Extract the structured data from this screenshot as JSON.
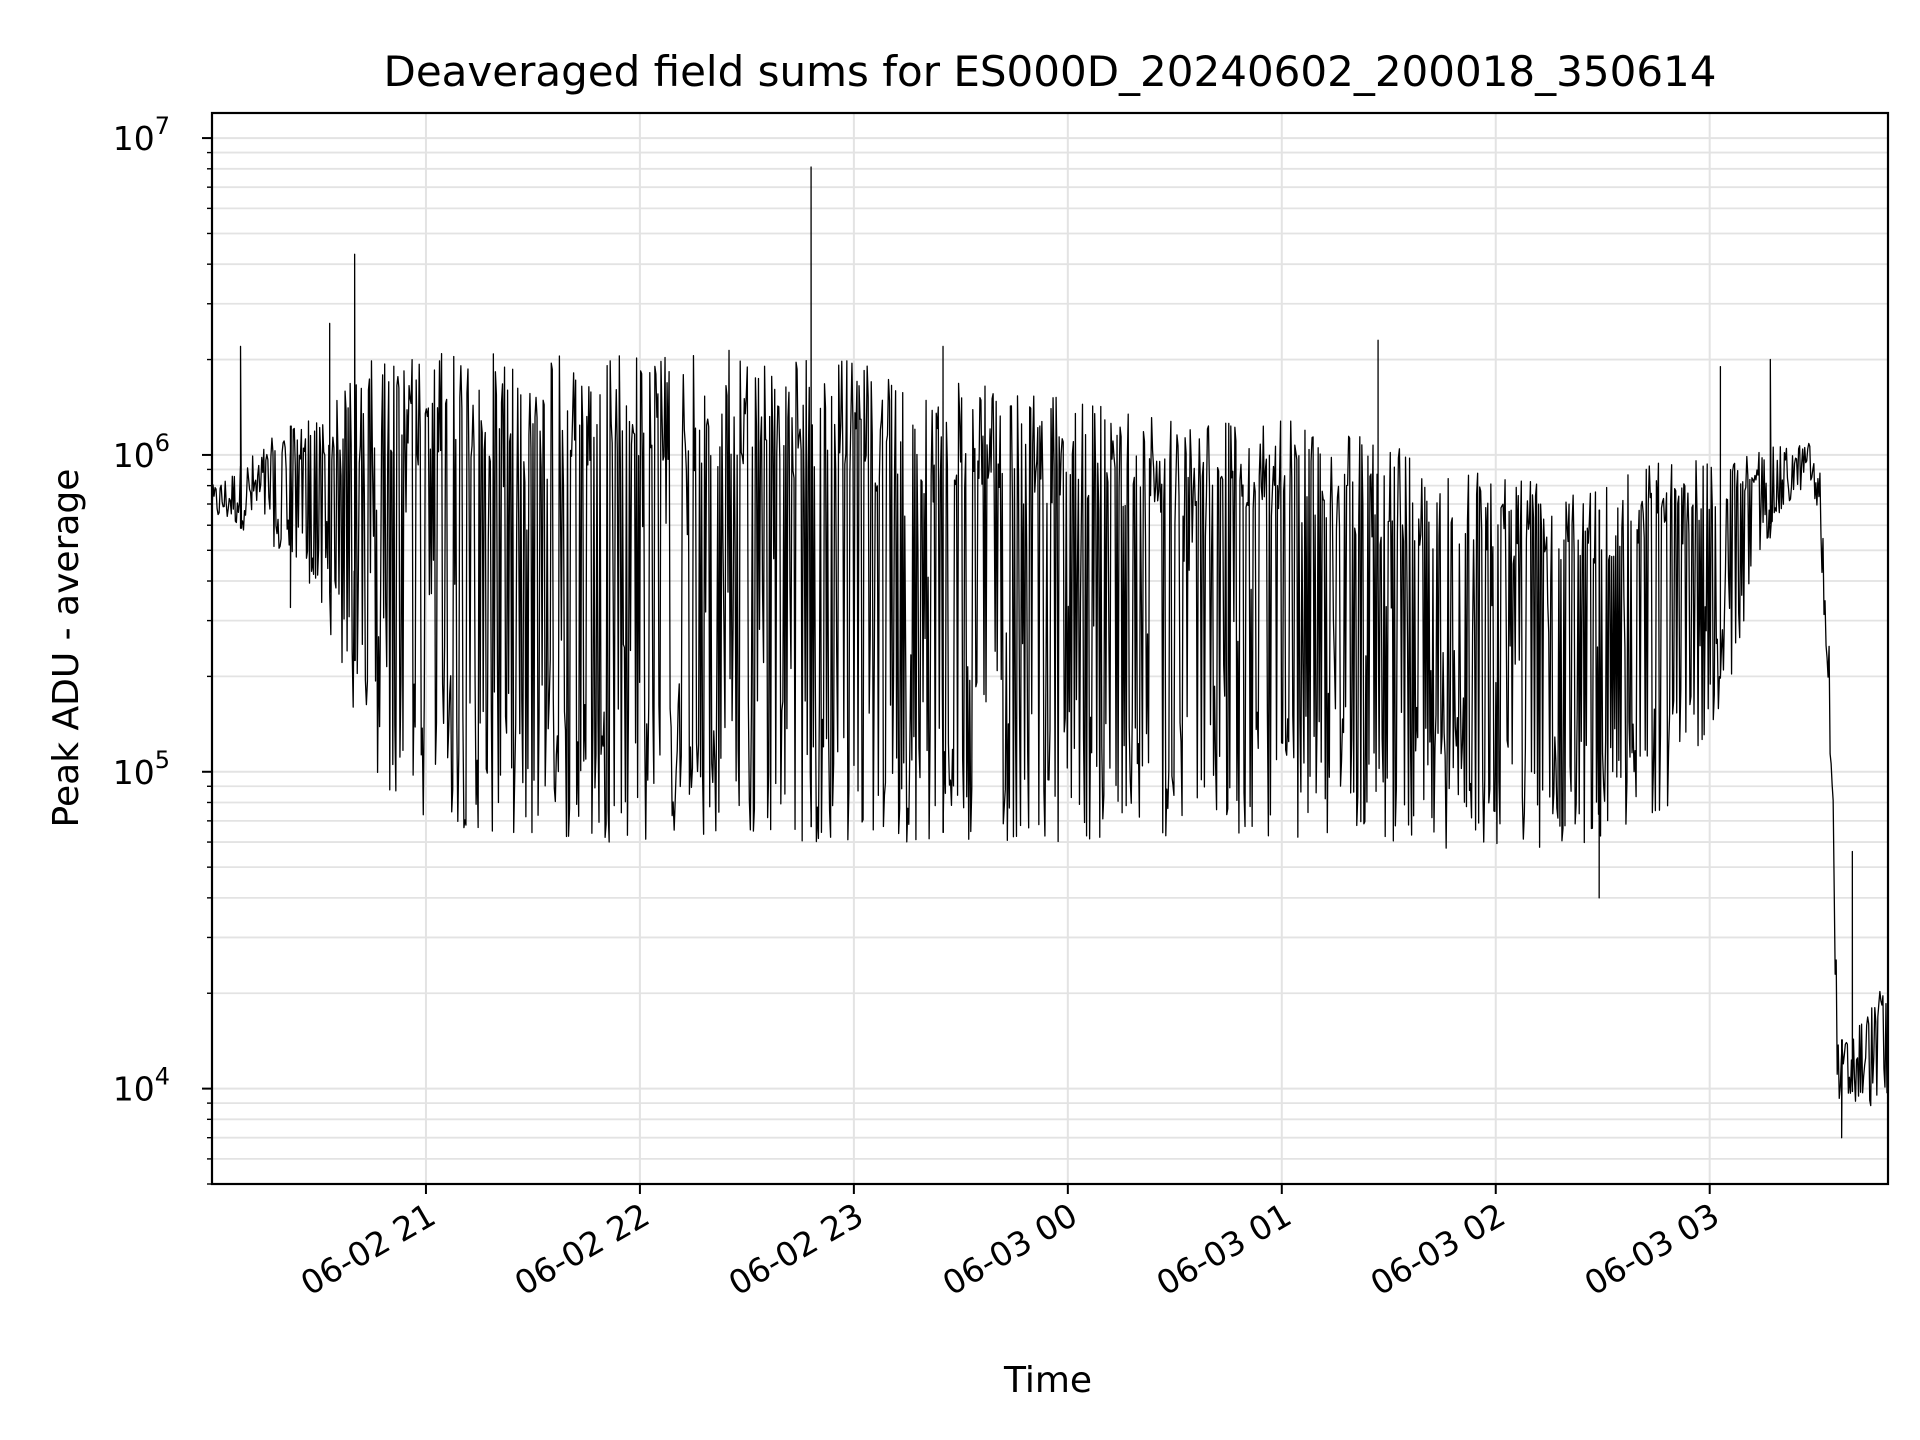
{
  "chart_data": {
    "type": "line",
    "title": "Deaveraged field sums for ES000D_20240602_200018_350614",
    "xlabel": "Time",
    "ylabel": "Peak ADU - average",
    "yscale": "log",
    "ylim": [
      5000,
      12000000
    ],
    "xlim": [
      "2024-06-02 20:00",
      "2024-06-03 03:50"
    ],
    "grid": true,
    "x_ticks": [
      "06-02 21",
      "06-02 22",
      "06-02 23",
      "06-03 00",
      "06-03 01",
      "06-03 02",
      "06-03 03"
    ],
    "y_ticks": [
      {
        "base": "10",
        "exp": "4",
        "value": 10000
      },
      {
        "base": "10",
        "exp": "5",
        "value": 100000
      },
      {
        "base": "10",
        "exp": "6",
        "value": 1000000
      },
      {
        "base": "10",
        "exp": "7",
        "value": 10000000
      }
    ],
    "series": [
      {
        "color": "#000000",
        "envelope": [
          {
            "time": "2024-06-02 20:00",
            "low": 620000,
            "high": 800000
          },
          {
            "time": "2024-06-02 20:15",
            "low": 550000,
            "high": 1100000
          },
          {
            "time": "2024-06-02 20:30",
            "low": 350000,
            "high": 1400000
          },
          {
            "time": "2024-06-02 20:45",
            "low": 90000,
            "high": 2000000
          },
          {
            "time": "2024-06-02 21:00",
            "low": 70000,
            "high": 2100000
          },
          {
            "time": "2024-06-02 21:30",
            "low": 60000,
            "high": 2100000
          },
          {
            "time": "2024-06-02 22:00",
            "low": 60000,
            "high": 2100000
          },
          {
            "time": "2024-06-02 22:30",
            "low": 60000,
            "high": 2150000
          },
          {
            "time": "2024-06-02 23:00",
            "low": 60000,
            "high": 2000000
          },
          {
            "time": "2024-06-02 23:30",
            "low": 60000,
            "high": 1700000
          },
          {
            "time": "2024-06-03 00:00",
            "low": 60000,
            "high": 1500000
          },
          {
            "time": "2024-06-03 00:30",
            "low": 62000,
            "high": 1400000
          },
          {
            "time": "2024-06-03 01:00",
            "low": 62000,
            "high": 1300000
          },
          {
            "time": "2024-06-03 01:30",
            "low": 60000,
            "high": 1100000
          },
          {
            "time": "2024-06-03 02:00",
            "low": 55000,
            "high": 900000
          },
          {
            "time": "2024-06-03 02:30",
            "low": 60000,
            "high": 900000
          },
          {
            "time": "2024-06-03 02:50",
            "low": 80000,
            "high": 1000000
          },
          {
            "time": "2024-06-03 03:05",
            "low": 180000,
            "high": 1000000
          },
          {
            "time": "2024-06-03 03:15",
            "low": 500000,
            "high": 1050000
          },
          {
            "time": "2024-06-03 03:28",
            "low": 850000,
            "high": 1100000
          },
          {
            "time": "2024-06-03 03:31",
            "low": 500000,
            "high": 900000
          },
          {
            "time": "2024-06-03 03:34",
            "low": 100000,
            "high": 200000
          },
          {
            "time": "2024-06-03 03:36",
            "low": 8000,
            "high": 14000
          },
          {
            "time": "2024-06-03 03:50",
            "low": 9000,
            "high": 22000
          }
        ],
        "spikes": [
          {
            "time": "2024-06-02 20:08",
            "value": 2200000
          },
          {
            "time": "2024-06-02 20:22",
            "value": 330000
          },
          {
            "time": "2024-06-02 20:33",
            "value": 2600000
          },
          {
            "time": "2024-06-02 20:40",
            "value": 4300000
          },
          {
            "time": "2024-06-02 22:48",
            "value": 8100000
          },
          {
            "time": "2024-06-02 23:25",
            "value": 2200000
          },
          {
            "time": "2024-06-03 01:27",
            "value": 2300000
          },
          {
            "time": "2024-06-03 02:29",
            "value": 40000
          },
          {
            "time": "2024-06-03 03:03",
            "value": 1900000
          },
          {
            "time": "2024-06-03 03:17",
            "value": 2000000
          },
          {
            "time": "2024-06-03 03:37",
            "value": 7000
          },
          {
            "time": "2024-06-03 03:40",
            "value": 56000
          }
        ]
      }
    ]
  }
}
